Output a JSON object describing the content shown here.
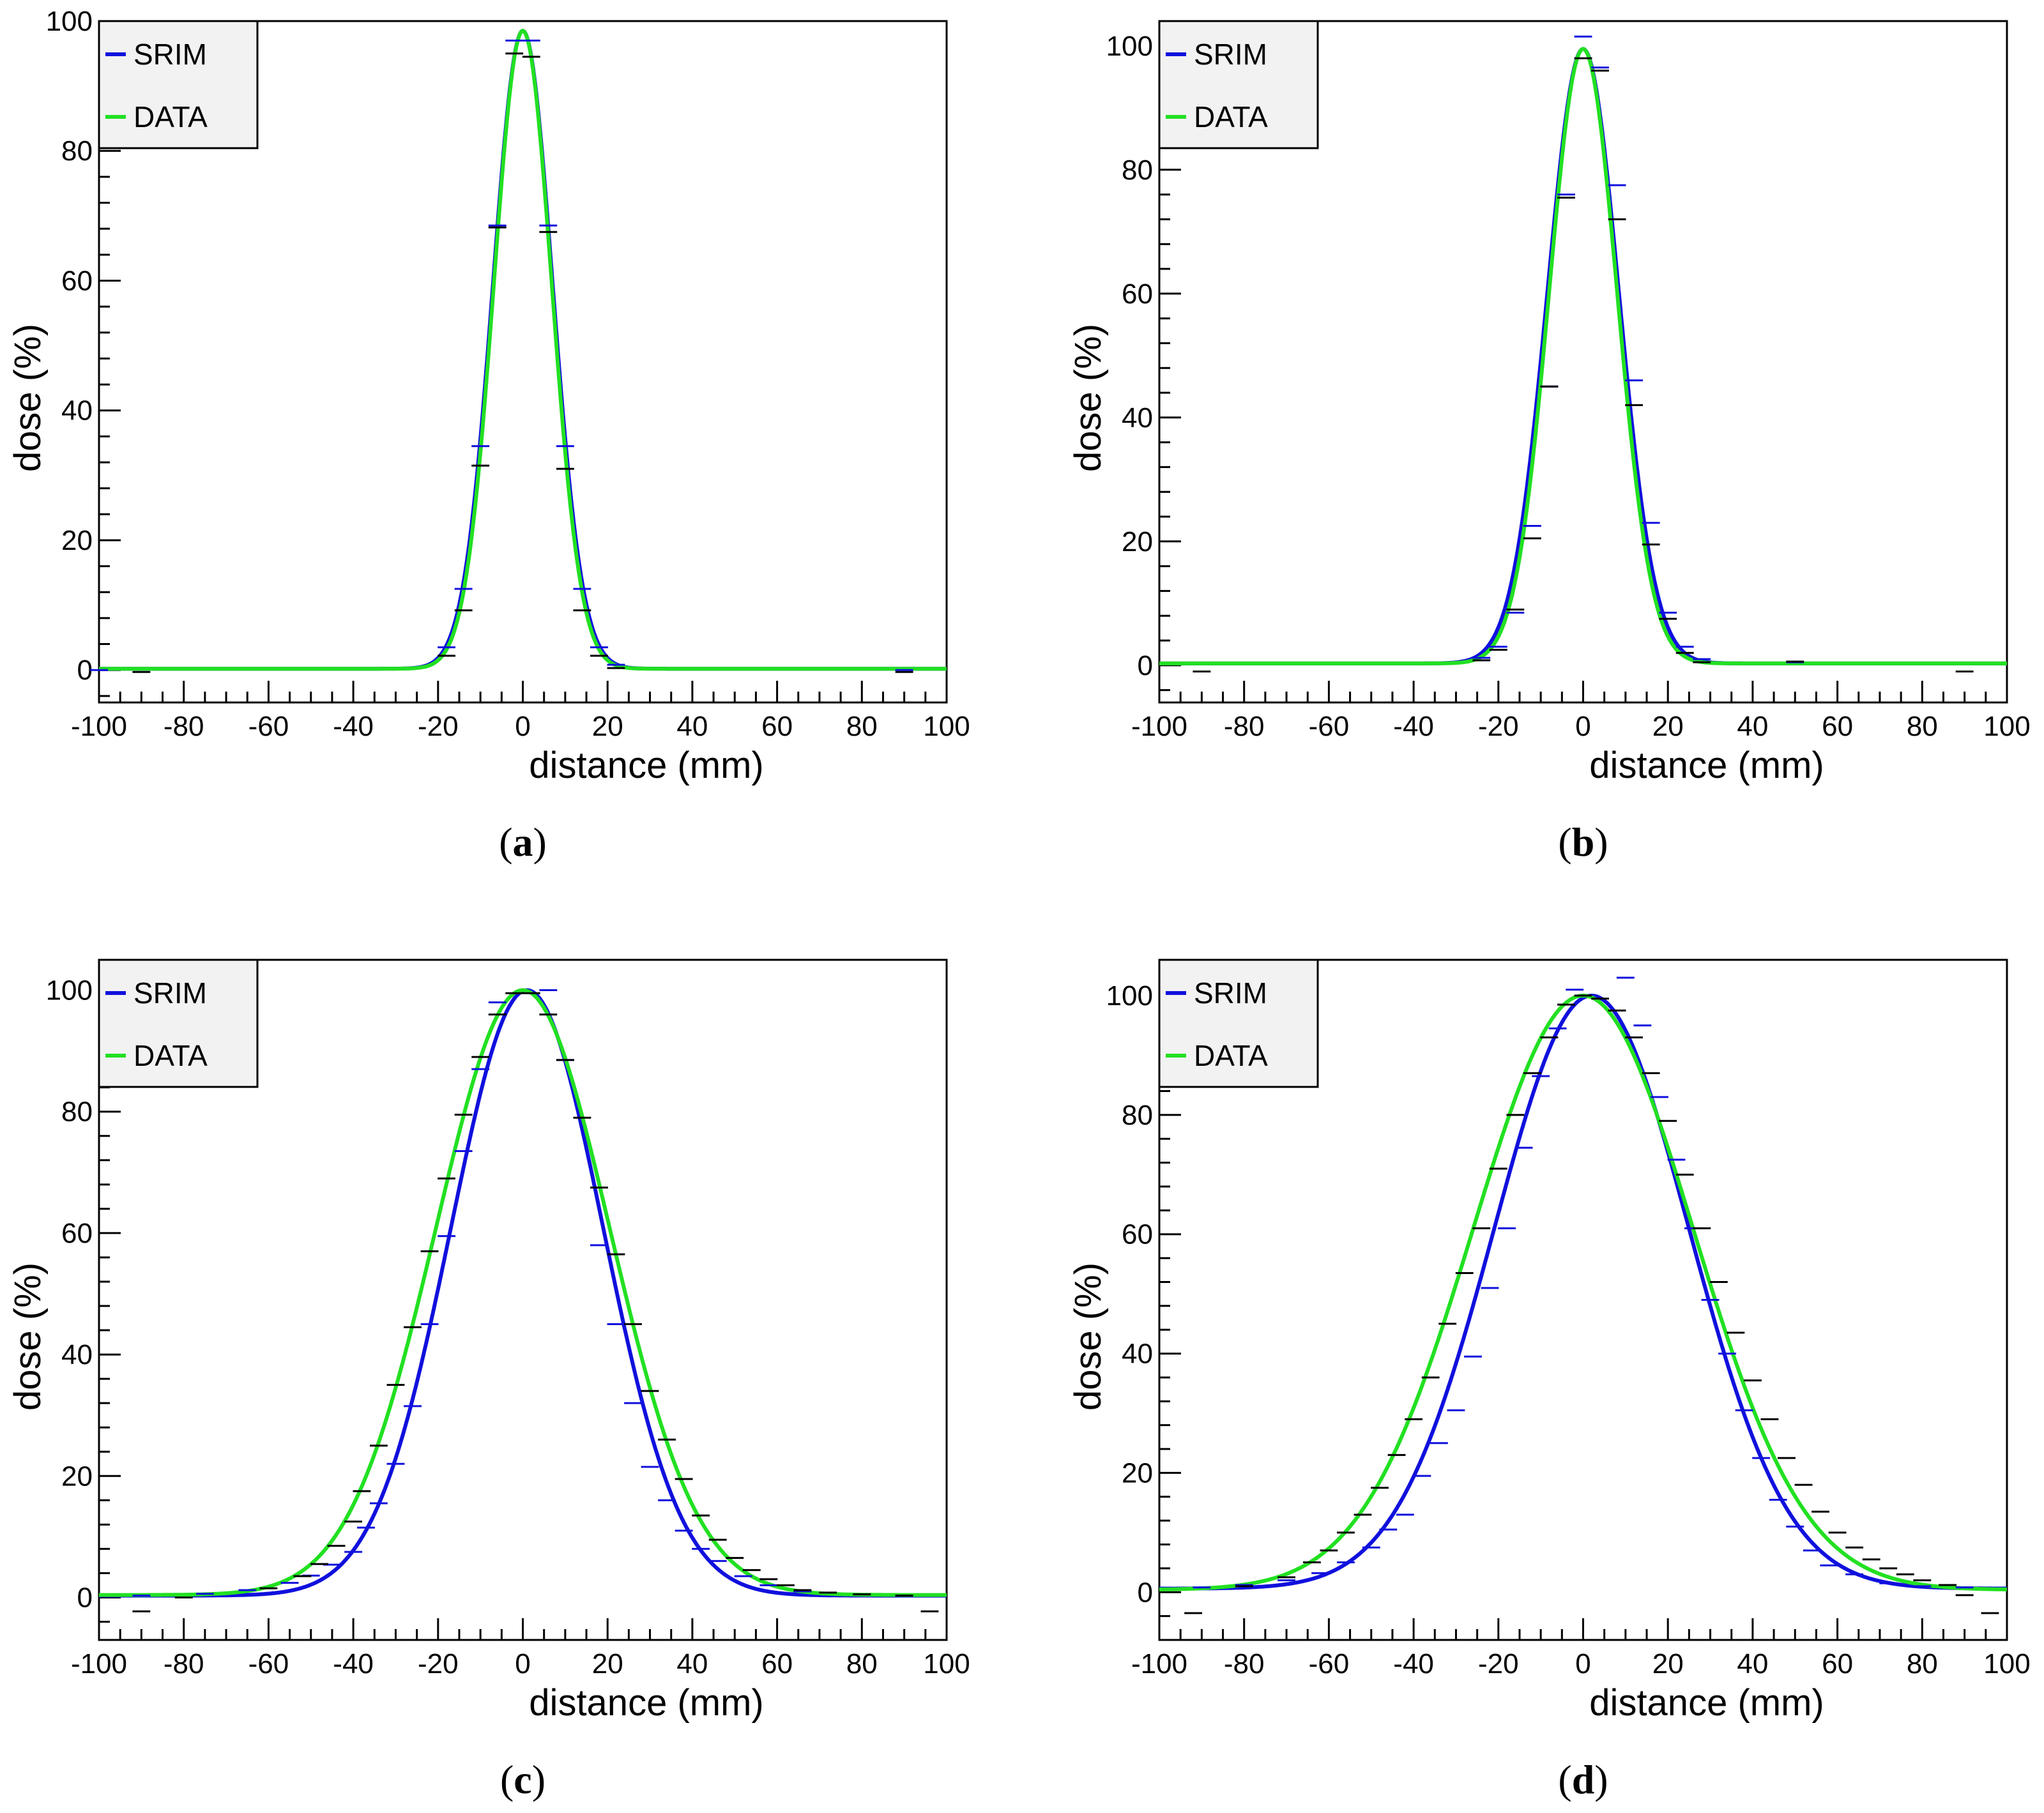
{
  "legend": {
    "srim_label": "SRIM",
    "data_label": "DATA"
  },
  "colors": {
    "srim": "#1010dd",
    "data": "#22e022",
    "data_markers": "#000000",
    "legend_bg": "#f2f2f2"
  },
  "chart_data": [
    {
      "id": "a",
      "type": "line",
      "caption": "a",
      "xlabel": "distance (mm)",
      "ylabel": "dose (%)",
      "xlim": [
        -100,
        100
      ],
      "ylim": [
        -5,
        100
      ],
      "x_ticks": [
        -100,
        -80,
        -60,
        -40,
        -20,
        0,
        20,
        40,
        60,
        80,
        100
      ],
      "y_ticks": [
        0,
        20,
        40,
        60,
        80,
        100
      ],
      "legend_position": "top-left",
      "series": [
        {
          "name": "SRIM",
          "center": 0,
          "sigma": 7.0,
          "peak": 98.5,
          "baseline": 0.2
        },
        {
          "name": "DATA",
          "center": 0,
          "sigma": 6.8,
          "peak": 98.5,
          "baseline": 0.2
        }
      ],
      "srim_points": [
        {
          "x": -100,
          "y": 0
        },
        {
          "x": -18,
          "y": 3.5
        },
        {
          "x": -14,
          "y": 12.5
        },
        {
          "x": -10,
          "y": 34.5
        },
        {
          "x": -6,
          "y": 68.5
        },
        {
          "x": -2,
          "y": 97.0
        },
        {
          "x": 2,
          "y": 97.0
        },
        {
          "x": 6,
          "y": 68.5
        },
        {
          "x": 10,
          "y": 34.5
        },
        {
          "x": 14,
          "y": 12.5
        },
        {
          "x": 18,
          "y": 3.5
        },
        {
          "x": 22,
          "y": 0.8
        },
        {
          "x": 90,
          "y": 0
        }
      ],
      "data_points": [
        {
          "x": -90,
          "y": -0.3
        },
        {
          "x": -18,
          "y": 2.2
        },
        {
          "x": -14,
          "y": 9.2
        },
        {
          "x": -10,
          "y": 31.5
        },
        {
          "x": -6,
          "y": 68.2
        },
        {
          "x": -2,
          "y": 95.0
        },
        {
          "x": 2,
          "y": 94.5
        },
        {
          "x": 6,
          "y": 67.5
        },
        {
          "x": 10,
          "y": 31.0
        },
        {
          "x": 14,
          "y": 9.2
        },
        {
          "x": 18,
          "y": 2.2
        },
        {
          "x": 22,
          "y": 0.3
        },
        {
          "x": 90,
          "y": -0.3
        }
      ]
    },
    {
      "id": "b",
      "type": "line",
      "caption": "b",
      "xlabel": "distance (mm)",
      "ylabel": "dose (%)",
      "xlim": [
        -100,
        100
      ],
      "ylim": [
        -6,
        104
      ],
      "x_ticks": [
        -100,
        -80,
        -60,
        -40,
        -20,
        0,
        20,
        40,
        60,
        80,
        100
      ],
      "y_ticks": [
        0,
        20,
        40,
        60,
        80,
        100
      ],
      "legend_position": "top-left",
      "series": [
        {
          "name": "SRIM",
          "center": 0,
          "sigma": 8.4,
          "peak": 99.5,
          "baseline": 0.3
        },
        {
          "name": "DATA",
          "center": 0,
          "sigma": 8.0,
          "peak": 99.5,
          "baseline": 0.3
        }
      ],
      "srim_points": [
        {
          "x": -24,
          "y": 1.2
        },
        {
          "x": -20,
          "y": 3.0
        },
        {
          "x": -16,
          "y": 8.5
        },
        {
          "x": -12,
          "y": 22.5
        },
        {
          "x": -8,
          "y": 45.0
        },
        {
          "x": -4,
          "y": 76.0
        },
        {
          "x": 0,
          "y": 101.5
        },
        {
          "x": 4,
          "y": 96.5
        },
        {
          "x": 8,
          "y": 77.5
        },
        {
          "x": 12,
          "y": 46.0
        },
        {
          "x": 16,
          "y": 23.0
        },
        {
          "x": 20,
          "y": 8.5
        },
        {
          "x": 24,
          "y": 3.0
        },
        {
          "x": 28,
          "y": 1.0
        },
        {
          "x": 50,
          "y": 0.5
        }
      ],
      "data_points": [
        {
          "x": -90,
          "y": -1.0
        },
        {
          "x": -24,
          "y": 0.8
        },
        {
          "x": -20,
          "y": 2.5
        },
        {
          "x": -16,
          "y": 9.0
        },
        {
          "x": -12,
          "y": 20.5
        },
        {
          "x": -8,
          "y": 45.0
        },
        {
          "x": -4,
          "y": 75.5
        },
        {
          "x": 0,
          "y": 98.0
        },
        {
          "x": 4,
          "y": 96.0
        },
        {
          "x": 8,
          "y": 72.0
        },
        {
          "x": 12,
          "y": 42.0
        },
        {
          "x": 16,
          "y": 19.5
        },
        {
          "x": 20,
          "y": 7.5
        },
        {
          "x": 24,
          "y": 2.0
        },
        {
          "x": 28,
          "y": 0.5
        },
        {
          "x": 50,
          "y": 0.6
        },
        {
          "x": 90,
          "y": -1.0
        }
      ]
    },
    {
      "id": "c",
      "type": "line",
      "caption": "c",
      "xlabel": "distance (mm)",
      "ylabel": "dose (%)",
      "xlim": [
        -100,
        100
      ],
      "ylim": [
        -7,
        105
      ],
      "x_ticks": [
        -100,
        -80,
        -60,
        -40,
        -20,
        0,
        20,
        40,
        60,
        80,
        100
      ],
      "y_ticks": [
        0,
        20,
        40,
        60,
        80,
        100
      ],
      "legend_position": "top-left",
      "series": [
        {
          "name": "SRIM",
          "center": 1,
          "sigma": 18.0,
          "peak": 100,
          "baseline": 0.3
        },
        {
          "name": "DATA",
          "center": 0,
          "sigma": 20.5,
          "peak": 100,
          "baseline": 0.4
        }
      ],
      "srim_points": [
        {
          "x": -90,
          "y": 0.3
        },
        {
          "x": -75,
          "y": 0.6
        },
        {
          "x": -65,
          "y": 1.2
        },
        {
          "x": -55,
          "y": 2.4
        },
        {
          "x": -50,
          "y": 3.6
        },
        {
          "x": -45,
          "y": 5.4
        },
        {
          "x": -40,
          "y": 7.5
        },
        {
          "x": -37,
          "y": 11.5
        },
        {
          "x": -34,
          "y": 15.5
        },
        {
          "x": -30,
          "y": 22.0
        },
        {
          "x": -26,
          "y": 31.5
        },
        {
          "x": -22,
          "y": 45.0
        },
        {
          "x": -18,
          "y": 59.5
        },
        {
          "x": -14,
          "y": 73.5
        },
        {
          "x": -10,
          "y": 87.0
        },
        {
          "x": -6,
          "y": 98.0
        },
        {
          "x": 6,
          "y": 100.0
        },
        {
          "x": 10,
          "y": 88.5
        },
        {
          "x": 18,
          "y": 58.0
        },
        {
          "x": 22,
          "y": 45.0
        },
        {
          "x": 26,
          "y": 32.0
        },
        {
          "x": 30,
          "y": 21.5
        },
        {
          "x": 34,
          "y": 16.0
        },
        {
          "x": 38,
          "y": 11.0
        },
        {
          "x": 42,
          "y": 8.0
        },
        {
          "x": 46,
          "y": 6.0
        },
        {
          "x": 52,
          "y": 3.5
        },
        {
          "x": 58,
          "y": 2.0
        },
        {
          "x": 66,
          "y": 1.0
        },
        {
          "x": 80,
          "y": 0.5
        },
        {
          "x": 90,
          "y": 0.3
        }
      ],
      "data_points": [
        {
          "x": -90,
          "y": -2.3
        },
        {
          "x": -80,
          "y": 0.0
        },
        {
          "x": -60,
          "y": 1.5
        },
        {
          "x": -52,
          "y": 3.5
        },
        {
          "x": -48,
          "y": 5.5
        },
        {
          "x": -44,
          "y": 8.5
        },
        {
          "x": -40,
          "y": 12.5
        },
        {
          "x": -38,
          "y": 17.5
        },
        {
          "x": -34,
          "y": 25.0
        },
        {
          "x": -30,
          "y": 35.0
        },
        {
          "x": -26,
          "y": 44.5
        },
        {
          "x": -22,
          "y": 57.0
        },
        {
          "x": -18,
          "y": 69.0
        },
        {
          "x": -14,
          "y": 79.5
        },
        {
          "x": -10,
          "y": 89.0
        },
        {
          "x": -6,
          "y": 96.0
        },
        {
          "x": -2,
          "y": 99.5
        },
        {
          "x": 2,
          "y": 99.5
        },
        {
          "x": 6,
          "y": 96.0
        },
        {
          "x": 10,
          "y": 88.5
        },
        {
          "x": 14,
          "y": 79.0
        },
        {
          "x": 18,
          "y": 67.5
        },
        {
          "x": 22,
          "y": 56.5
        },
        {
          "x": 26,
          "y": 45.0
        },
        {
          "x": 30,
          "y": 34.0
        },
        {
          "x": 34,
          "y": 26.0
        },
        {
          "x": 38,
          "y": 19.5
        },
        {
          "x": 42,
          "y": 13.5
        },
        {
          "x": 46,
          "y": 9.5
        },
        {
          "x": 50,
          "y": 6.5
        },
        {
          "x": 54,
          "y": 4.5
        },
        {
          "x": 58,
          "y": 3.0
        },
        {
          "x": 62,
          "y": 2.0
        },
        {
          "x": 66,
          "y": 1.2
        },
        {
          "x": 72,
          "y": 0.8
        },
        {
          "x": 80,
          "y": 0.5
        },
        {
          "x": 90,
          "y": 0.3
        },
        {
          "x": 96,
          "y": -2.3
        }
      ]
    },
    {
      "id": "d",
      "type": "line",
      "caption": "d",
      "xlabel": "distance (mm)",
      "ylabel": "dose (%)",
      "xlim": [
        -100,
        100
      ],
      "ylim": [
        -8,
        106
      ],
      "x_ticks": [
        -100,
        -80,
        -60,
        -40,
        -20,
        0,
        20,
        40,
        60,
        80,
        100
      ],
      "y_ticks": [
        0,
        20,
        40,
        60,
        80,
        100
      ],
      "legend_position": "top-left",
      "series": [
        {
          "name": "SRIM",
          "center": 2,
          "sigma": 23.0,
          "peak": 100,
          "baseline": 0.6
        },
        {
          "name": "DATA",
          "center": 0,
          "sigma": 26.0,
          "peak": 100,
          "baseline": 0.4
        }
      ],
      "srim_points": [
        {
          "x": -90,
          "y": 0.8
        },
        {
          "x": -80,
          "y": 1.2
        },
        {
          "x": -70,
          "y": 2.0
        },
        {
          "x": -62,
          "y": 3.2
        },
        {
          "x": -56,
          "y": 5.0
        },
        {
          "x": -50,
          "y": 7.5
        },
        {
          "x": -46,
          "y": 10.5
        },
        {
          "x": -42,
          "y": 13.0
        },
        {
          "x": -38,
          "y": 19.5
        },
        {
          "x": -34,
          "y": 25.0
        },
        {
          "x": -30,
          "y": 30.5
        },
        {
          "x": -26,
          "y": 39.5
        },
        {
          "x": -22,
          "y": 51.0
        },
        {
          "x": -18,
          "y": 61.0
        },
        {
          "x": -14,
          "y": 74.5
        },
        {
          "x": -10,
          "y": 86.5
        },
        {
          "x": -6,
          "y": 94.5
        },
        {
          "x": -2,
          "y": 101.0
        },
        {
          "x": 10,
          "y": 103.0
        },
        {
          "x": 14,
          "y": 95.0
        },
        {
          "x": 18,
          "y": 83.0
        },
        {
          "x": 22,
          "y": 72.5
        },
        {
          "x": 26,
          "y": 61.0
        },
        {
          "x": 30,
          "y": 49.0
        },
        {
          "x": 34,
          "y": 40.0
        },
        {
          "x": 38,
          "y": 30.5
        },
        {
          "x": 42,
          "y": 22.5
        },
        {
          "x": 46,
          "y": 15.5
        },
        {
          "x": 50,
          "y": 11.0
        },
        {
          "x": 54,
          "y": 7.0
        },
        {
          "x": 58,
          "y": 4.5
        },
        {
          "x": 64,
          "y": 3.0
        },
        {
          "x": 72,
          "y": 1.5
        },
        {
          "x": 80,
          "y": 1.0
        },
        {
          "x": 90,
          "y": 0.8
        }
      ],
      "data_points": [
        {
          "x": -92,
          "y": -3.5
        },
        {
          "x": -80,
          "y": 1.0
        },
        {
          "x": -70,
          "y": 2.5
        },
        {
          "x": -64,
          "y": 5.0
        },
        {
          "x": -60,
          "y": 7.0
        },
        {
          "x": -56,
          "y": 10.0
        },
        {
          "x": -52,
          "y": 13.0
        },
        {
          "x": -48,
          "y": 17.5
        },
        {
          "x": -44,
          "y": 23.0
        },
        {
          "x": -40,
          "y": 29.0
        },
        {
          "x": -36,
          "y": 36.0
        },
        {
          "x": -32,
          "y": 45.0
        },
        {
          "x": -28,
          "y": 53.5
        },
        {
          "x": -24,
          "y": 61.0
        },
        {
          "x": -20,
          "y": 71.0
        },
        {
          "x": -16,
          "y": 80.0
        },
        {
          "x": -12,
          "y": 87.0
        },
        {
          "x": -8,
          "y": 93.0
        },
        {
          "x": -4,
          "y": 98.5
        },
        {
          "x": 0,
          "y": 100.0
        },
        {
          "x": 4,
          "y": 99.5
        },
        {
          "x": 8,
          "y": 97.5
        },
        {
          "x": 12,
          "y": 93.0
        },
        {
          "x": 16,
          "y": 87.0
        },
        {
          "x": 20,
          "y": 79.0
        },
        {
          "x": 24,
          "y": 70.0
        },
        {
          "x": 28,
          "y": 61.0
        },
        {
          "x": 32,
          "y": 52.0
        },
        {
          "x": 36,
          "y": 43.5
        },
        {
          "x": 40,
          "y": 35.5
        },
        {
          "x": 44,
          "y": 29.0
        },
        {
          "x": 48,
          "y": 22.5
        },
        {
          "x": 52,
          "y": 18.0
        },
        {
          "x": 56,
          "y": 13.5
        },
        {
          "x": 60,
          "y": 10.0
        },
        {
          "x": 64,
          "y": 7.5
        },
        {
          "x": 68,
          "y": 5.5
        },
        {
          "x": 72,
          "y": 4.0
        },
        {
          "x": 76,
          "y": 3.0
        },
        {
          "x": 80,
          "y": 2.0
        },
        {
          "x": 86,
          "y": 1.2
        },
        {
          "x": 90,
          "y": -0.5
        },
        {
          "x": 96,
          "y": -3.5
        }
      ]
    }
  ]
}
